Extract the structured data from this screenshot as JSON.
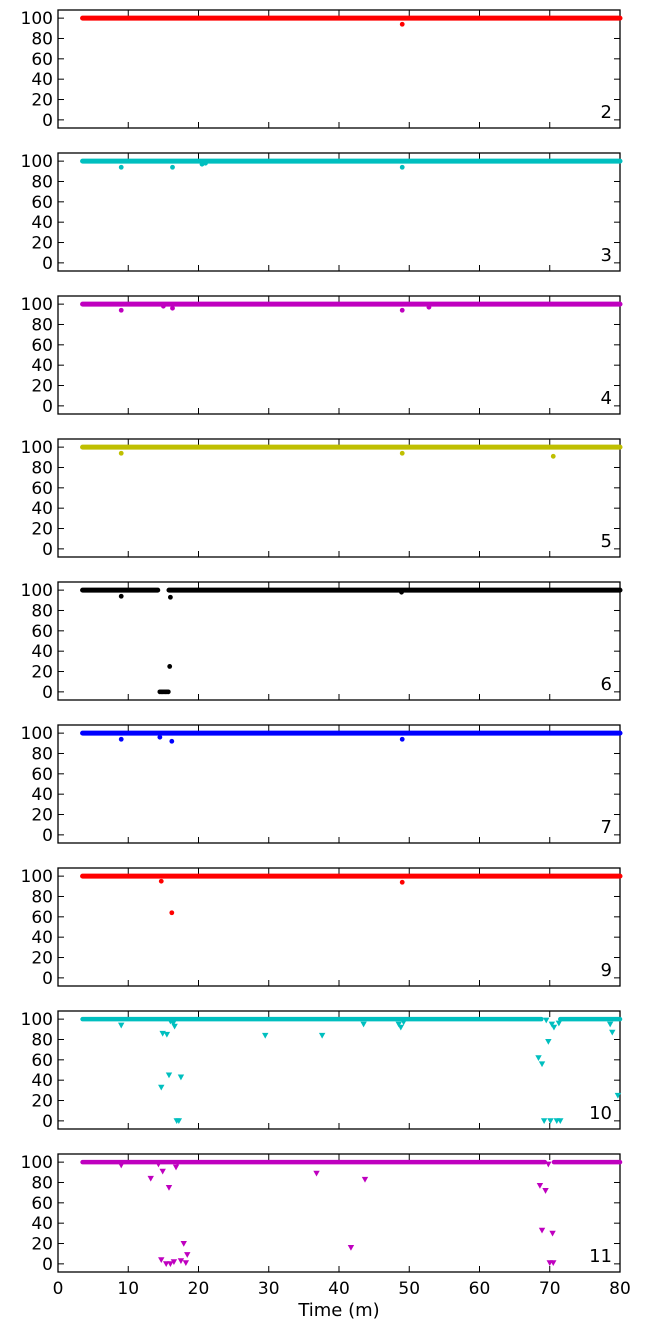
{
  "chart_data": {
    "type": "scatter",
    "xlabel": "Time (m)",
    "xlim": [
      0,
      80
    ],
    "x_ticks": [
      0,
      10,
      20,
      30,
      40,
      50,
      60,
      70,
      80
    ],
    "ylim": [
      -8,
      108
    ],
    "y_ticks": [
      0,
      20,
      40,
      60,
      80,
      100
    ],
    "grid": false,
    "x_range_data": [
      3.5,
      80
    ],
    "panels": [
      {
        "label": "2",
        "color": "#ff0000",
        "marker": "circle",
        "baseline": 100,
        "points": [
          [
            49,
            94
          ]
        ]
      },
      {
        "label": "3",
        "color": "#00bfbf",
        "marker": "circle",
        "baseline": 100,
        "points": [
          [
            9,
            94
          ],
          [
            16.3,
            94
          ],
          [
            20.5,
            97
          ],
          [
            21,
            98
          ],
          [
            49,
            94
          ]
        ]
      },
      {
        "label": "4",
        "color": "#bf00bf",
        "marker": "circle",
        "baseline": 100,
        "points": [
          [
            9,
            94
          ],
          [
            15,
            98
          ],
          [
            16.3,
            96
          ],
          [
            49,
            94
          ],
          [
            52.8,
            97
          ]
        ]
      },
      {
        "label": "5",
        "color": "#bfbf00",
        "marker": "circle",
        "baseline": 100,
        "points": [
          [
            9,
            94
          ],
          [
            49,
            94
          ],
          [
            70.5,
            91
          ]
        ]
      },
      {
        "label": "6",
        "color": "#000000",
        "marker": "circle",
        "baseline": 100,
        "gaps": [
          [
            14.2,
            15.8
          ]
        ],
        "points": [
          [
            9,
            94
          ],
          [
            16,
            93
          ],
          [
            15.9,
            25
          ],
          [
            14.5,
            0
          ],
          [
            14.7,
            0
          ],
          [
            14.9,
            0
          ],
          [
            15.1,
            0
          ],
          [
            15.3,
            0
          ],
          [
            15.5,
            0
          ],
          [
            15.7,
            0
          ],
          [
            48.9,
            98
          ]
        ]
      },
      {
        "label": "7",
        "color": "#0000ff",
        "marker": "circle",
        "baseline": 100,
        "points": [
          [
            9,
            94
          ],
          [
            14.5,
            96
          ],
          [
            16.2,
            92
          ],
          [
            49,
            94
          ]
        ]
      },
      {
        "label": "9",
        "color": "#ff0000",
        "marker": "circle",
        "baseline": 100,
        "points": [
          [
            14.7,
            95
          ],
          [
            16.2,
            64
          ],
          [
            49,
            94
          ]
        ]
      },
      {
        "label": "10",
        "color": "#00bfbf",
        "marker": "triangle",
        "baseline": 100,
        "gaps": [
          [
            68.8,
            71.5
          ]
        ],
        "points": [
          [
            9,
            94
          ],
          [
            14.7,
            33
          ],
          [
            14.9,
            86
          ],
          [
            15.5,
            85
          ],
          [
            15.8,
            45
          ],
          [
            16,
            98
          ],
          [
            16.4,
            96
          ],
          [
            16.6,
            93
          ],
          [
            16.9,
            0
          ],
          [
            17.2,
            0
          ],
          [
            17.5,
            43
          ],
          [
            29.5,
            84
          ],
          [
            37.6,
            84
          ],
          [
            43.5,
            95
          ],
          [
            48.5,
            95
          ],
          [
            48.8,
            92
          ],
          [
            49.2,
            97
          ],
          [
            68.4,
            62
          ],
          [
            68.9,
            56
          ],
          [
            69.2,
            0
          ],
          [
            69.5,
            99
          ],
          [
            69.8,
            78
          ],
          [
            70.1,
            0
          ],
          [
            70.3,
            95
          ],
          [
            70.6,
            92
          ],
          [
            71,
            0
          ],
          [
            71.3,
            96
          ],
          [
            71.5,
            0
          ],
          [
            78.6,
            95
          ],
          [
            78.9,
            87
          ],
          [
            79.7,
            25
          ]
        ]
      },
      {
        "label": "11",
        "color": "#bf00bf",
        "marker": "triangle",
        "baseline": 100,
        "gaps": [
          [
            69.3,
            70.6
          ]
        ],
        "points": [
          [
            9,
            97
          ],
          [
            13.2,
            84
          ],
          [
            14.3,
            98
          ],
          [
            14.7,
            4
          ],
          [
            14.9,
            91
          ],
          [
            15.4,
            0
          ],
          [
            15.8,
            75
          ],
          [
            16,
            0
          ],
          [
            16.5,
            2
          ],
          [
            16.8,
            95
          ],
          [
            17,
            99
          ],
          [
            17.5,
            3
          ],
          [
            17.9,
            20
          ],
          [
            18.2,
            1
          ],
          [
            18.4,
            9
          ],
          [
            36.8,
            89
          ],
          [
            41.7,
            16
          ],
          [
            43.7,
            83
          ],
          [
            68.6,
            77
          ],
          [
            68.9,
            33
          ],
          [
            69.4,
            72
          ],
          [
            69.8,
            98
          ],
          [
            70,
            1
          ],
          [
            70.4,
            30
          ],
          [
            70.5,
            1
          ]
        ]
      }
    ]
  }
}
